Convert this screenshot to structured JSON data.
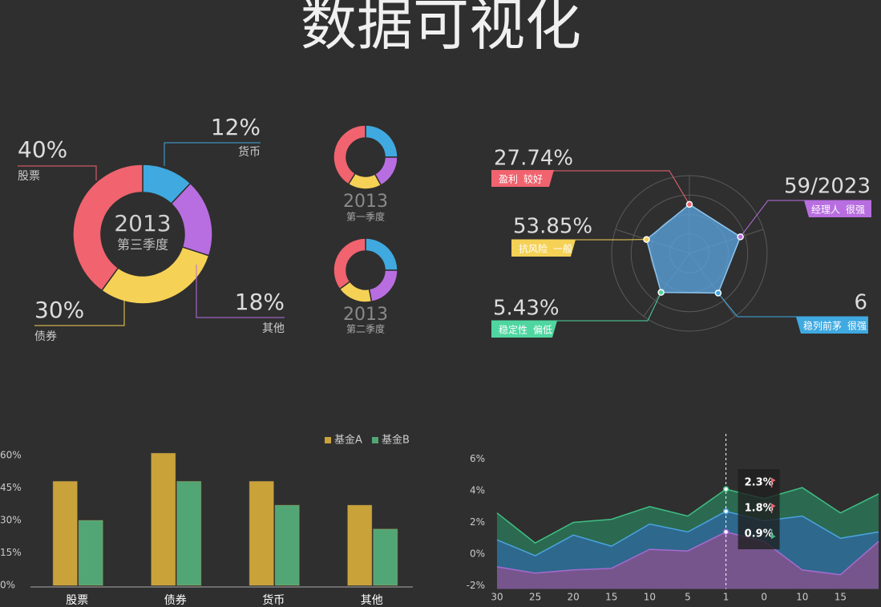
{
  "title": "数据可视化",
  "chart_data": [
    {
      "type": "pie",
      "title": "2013",
      "subtitle": "第三季度",
      "categories": [
        "货币",
        "其他",
        "债券",
        "股票"
      ],
      "values": [
        12,
        18,
        30,
        40
      ],
      "value_labels": [
        "12%",
        "18%",
        "30%",
        "40%"
      ],
      "colors": [
        "#3fa9e0",
        "#b86ee0",
        "#f5d155",
        "#f0636f"
      ]
    },
    {
      "type": "pie",
      "title": "2013",
      "subtitle": "第一季度",
      "values": [
        25,
        17,
        17,
        41
      ],
      "colors": [
        "#3fa9e0",
        "#b86ee0",
        "#f5d155",
        "#f0636f"
      ]
    },
    {
      "type": "pie",
      "title": "2013",
      "subtitle": "第二季度",
      "values": [
        25,
        22,
        18,
        35
      ],
      "colors": [
        "#3fa9e0",
        "#b86ee0",
        "#f5d155",
        "#f0636f"
      ]
    },
    {
      "type": "radar",
      "categories": [
        "盈利",
        "经理人",
        "稳列前茅",
        "稳定性",
        "抗风险"
      ],
      "levels": [
        "较好",
        "很强",
        "很强",
        "偏低",
        "一般"
      ],
      "annotations": [
        "27.74%",
        "59/2023",
        "6",
        "5.43%",
        "53.85%"
      ],
      "values": [
        63,
        69,
        63,
        62,
        58
      ],
      "rlim": [
        0,
        100
      ],
      "rticks": [
        25,
        50,
        75,
        100
      ],
      "colors": [
        "#f0636f",
        "#b86ee0",
        "#3fa9e0",
        "#4fd6a0",
        "#f5d155"
      ],
      "color": "#5aa0d8"
    },
    {
      "type": "bar",
      "categories": [
        "股票",
        "债券",
        "货币",
        "其他"
      ],
      "series": [
        {
          "name": "基金A",
          "color": "#c9a23a",
          "values": [
            48,
            61,
            48,
            37
          ]
        },
        {
          "name": "基金B",
          "color": "#52a675",
          "values": [
            30,
            48,
            37,
            26
          ]
        }
      ],
      "ylim": [
        0,
        60
      ],
      "yticks": [
        {
          "value": 0,
          "label": "0%"
        },
        {
          "value": 15,
          "label": "15%"
        },
        {
          "value": 30,
          "label": "30%"
        },
        {
          "value": 45,
          "label": "45%"
        },
        {
          "value": 60,
          "label": "60%"
        }
      ],
      "legend": "top-right"
    },
    {
      "type": "area",
      "categories": [
        "30",
        "25",
        "20",
        "15",
        "10",
        "5",
        "1",
        "0",
        "10",
        "15",
        null
      ],
      "series": [
        {
          "color": "#3fbf85",
          "values": [
            2.6,
            0.7,
            2.0,
            2.2,
            3.0,
            2.4,
            4.1,
            3.5,
            4.2,
            2.6,
            3.8
          ]
        },
        {
          "color": "#4aa3df",
          "values": [
            0.9,
            -0.1,
            1.2,
            0.5,
            1.9,
            1.4,
            2.7,
            2.1,
            2.4,
            1.0,
            1.4
          ]
        },
        {
          "color": "#a56bd0",
          "values": [
            -0.8,
            -1.2,
            -1.0,
            -0.9,
            0.3,
            0.2,
            1.4,
            0.8,
            -1.0,
            -1.3,
            0.8
          ]
        }
      ],
      "ylim": [
        -2.2,
        6.4
      ],
      "yticks": [
        {
          "value": -2,
          "label": "-2%"
        },
        {
          "value": 0,
          "label": "0%"
        },
        {
          "value": 2,
          "label": "2%"
        },
        {
          "value": 4,
          "label": "4%"
        },
        {
          "value": 6,
          "label": "6%"
        }
      ],
      "highlight": "1",
      "tooltip": [
        {
          "label": "2.3%",
          "trend": "up"
        },
        {
          "label": "1.8%",
          "trend": "up"
        },
        {
          "label": "0.9%",
          "trend": "down"
        }
      ]
    }
  ]
}
